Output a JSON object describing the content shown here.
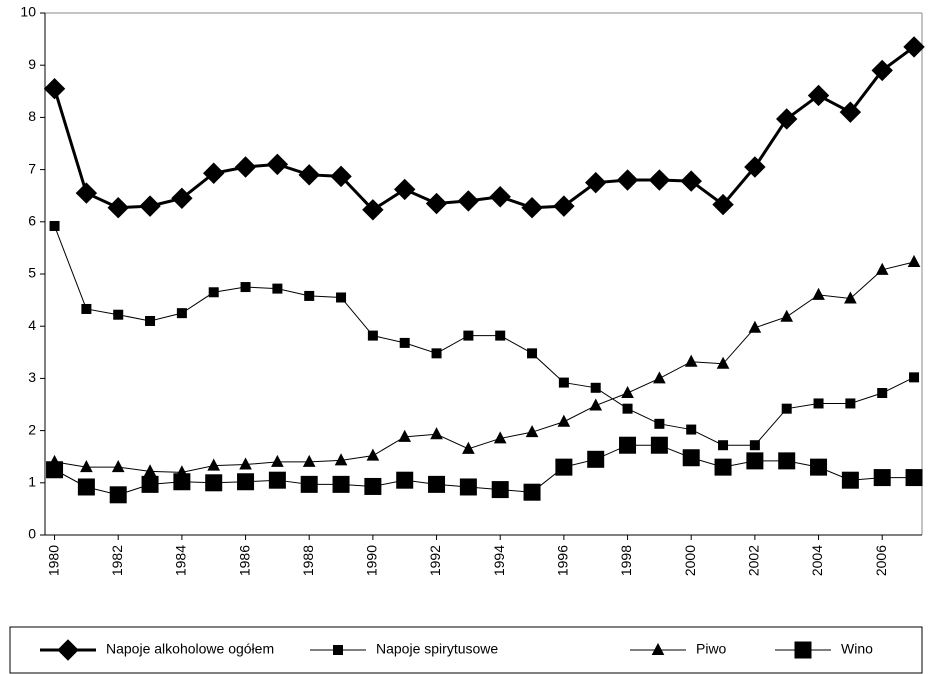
{
  "chart_data": {
    "type": "line",
    "x": [
      1980,
      1981,
      1982,
      1983,
      1984,
      1985,
      1986,
      1987,
      1988,
      1989,
      1990,
      1991,
      1992,
      1993,
      1994,
      1995,
      1996,
      1997,
      1998,
      1999,
      2000,
      2001,
      2002,
      2003,
      2004,
      2005,
      2006,
      2007
    ],
    "xlim": [
      1979.7,
      2007.25
    ],
    "xticks": [
      1980,
      1982,
      1984,
      1986,
      1988,
      1990,
      1992,
      1994,
      1996,
      1998,
      2000,
      2002,
      2004,
      2006
    ],
    "ylim": [
      0,
      10
    ],
    "yticks": [
      0,
      1,
      2,
      3,
      4,
      5,
      6,
      7,
      8,
      9,
      10
    ],
    "series": [
      {
        "name": "Napoje alkoholowe ogółem",
        "color": "#000000",
        "marker": "diamond",
        "values": [
          8.55,
          6.55,
          6.27,
          6.3,
          6.45,
          6.93,
          7.05,
          7.1,
          6.9,
          6.87,
          6.23,
          6.62,
          6.35,
          6.4,
          6.48,
          6.27,
          6.3,
          6.75,
          6.8,
          6.8,
          6.78,
          6.33,
          7.05,
          7.97,
          8.42,
          8.1,
          8.9,
          9.35
        ]
      },
      {
        "name": "Napoje spirytusowe",
        "color": "#000000",
        "marker": "square",
        "values": [
          5.92,
          4.33,
          4.22,
          4.1,
          4.25,
          4.65,
          4.75,
          4.72,
          4.58,
          4.55,
          3.82,
          3.68,
          3.48,
          3.82,
          3.82,
          3.48,
          2.92,
          2.82,
          2.42,
          2.13,
          2.02,
          1.72,
          1.72,
          2.42,
          2.52,
          2.52,
          2.72,
          3.02
        ]
      },
      {
        "name": "Piwo",
        "color": "#000000",
        "marker": "triangle",
        "values": [
          1.4,
          1.3,
          1.3,
          1.22,
          1.2,
          1.33,
          1.35,
          1.4,
          1.4,
          1.43,
          1.52,
          1.88,
          1.93,
          1.65,
          1.85,
          1.97,
          2.17,
          2.48,
          2.72,
          3.0,
          3.32,
          3.28,
          3.97,
          4.18,
          4.6,
          4.53,
          5.08,
          5.23
        ]
      },
      {
        "name": "Wino",
        "color": "#000000",
        "marker": "big-square",
        "values": [
          1.25,
          0.92,
          0.77,
          0.97,
          1.02,
          1.0,
          1.02,
          1.05,
          0.97,
          0.97,
          0.93,
          1.05,
          0.97,
          0.92,
          0.87,
          0.82,
          1.3,
          1.45,
          1.72,
          1.72,
          1.48,
          1.3,
          1.42,
          1.42,
          1.3,
          1.05,
          1.1,
          1.1
        ]
      }
    ]
  }
}
